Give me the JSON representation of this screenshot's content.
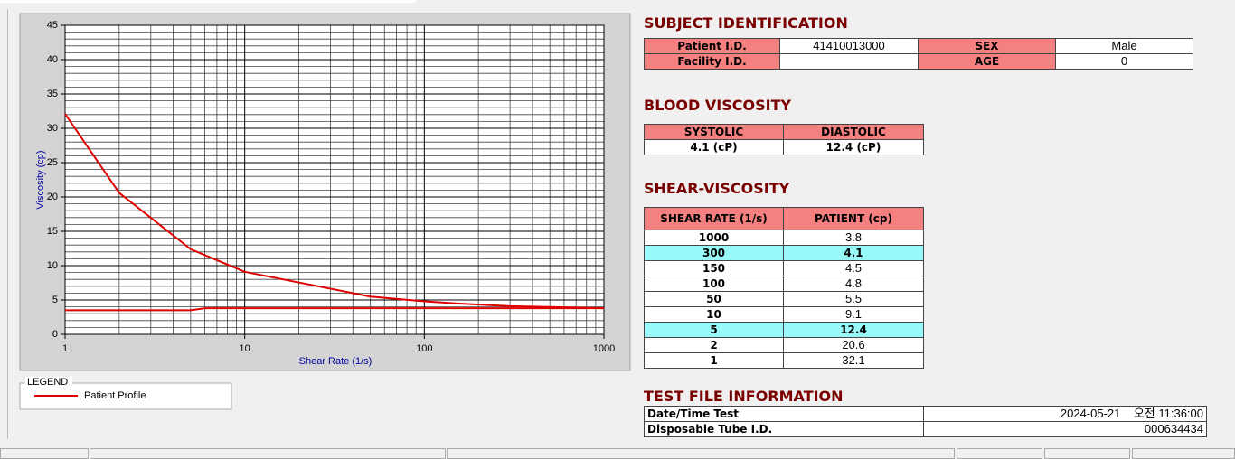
{
  "chart_data": {
    "type": "line",
    "xlabel": "Shear Rate (1/s)",
    "ylabel": "Viscosity (cp)",
    "xscale": "log",
    "xlim": [
      1,
      1000
    ],
    "ylim": [
      0,
      45
    ],
    "xticks": [
      1,
      10,
      100,
      1000
    ],
    "yticks": [
      0,
      5,
      10,
      15,
      20,
      25,
      30,
      35,
      40,
      45
    ],
    "xminorticks": [
      2,
      3,
      4,
      5,
      6,
      7,
      8,
      9,
      20,
      30,
      40,
      50,
      60,
      70,
      80,
      90,
      200,
      300,
      400,
      500,
      600,
      700,
      800,
      900
    ],
    "yminorticks": [
      1,
      2,
      3,
      4,
      6,
      7,
      8,
      9,
      11,
      12,
      13,
      14,
      16,
      17,
      18,
      19,
      21,
      22,
      23,
      24,
      26,
      27,
      28,
      29,
      31,
      32,
      33,
      34,
      36,
      37,
      38,
      39,
      41,
      42,
      43,
      44
    ],
    "grid": true,
    "legend_title": "LEGEND",
    "series": [
      {
        "name": "Patient Profile",
        "color": "#e00000",
        "x": [
          1,
          2,
          5,
          10,
          50,
          100,
          150,
          300,
          1000
        ],
        "values": [
          32.1,
          20.6,
          12.4,
          9.1,
          5.5,
          4.8,
          4.5,
          4.1,
          3.8
        ]
      },
      {
        "color": "#e00000",
        "x": [
          1,
          5,
          6,
          1000
        ],
        "values": [
          3.5,
          3.5,
          3.8,
          3.8
        ]
      }
    ]
  },
  "subject": {
    "title": "SUBJECT IDENTIFICATION",
    "rows": [
      {
        "label": "Patient I.D.",
        "value": "41410013000",
        "label2": "SEX",
        "value2": "Male"
      },
      {
        "label": "Facility I.D.",
        "label2": "AGE",
        "value2": 0
      }
    ]
  },
  "blood": {
    "title": "BLOOD VISCOSITY",
    "headers": [
      "SYSTOLIC",
      "DIASTOLIC"
    ],
    "values": [
      "4.1 (cP)",
      "12.4 (cP)"
    ]
  },
  "shear": {
    "title": "SHEAR-VISCOSITY",
    "headers": [
      "SHEAR RATE (1/s)",
      "PATIENT (cp)"
    ],
    "rows": [
      {
        "rate": 1000,
        "patient": 3.8
      },
      {
        "rate": 300,
        "patient": 4.1,
        "highlight": true
      },
      {
        "rate": 150,
        "patient": 4.5
      },
      {
        "rate": 100,
        "patient": 4.8
      },
      {
        "rate": 50,
        "patient": 5.5
      },
      {
        "rate": 10,
        "patient": 9.1
      },
      {
        "rate": 5,
        "patient": 12.4,
        "highlight": true
      },
      {
        "rate": 2,
        "patient": 20.6
      },
      {
        "rate": 1,
        "patient": 32.1
      }
    ]
  },
  "testfile": {
    "title": "TEST FILE INFORMATION",
    "rows": [
      {
        "label": "Date/Time Test",
        "date": "2024-05-21",
        "time": "오전 11:36:00"
      },
      {
        "label": "Disposable Tube I.D.",
        "value": "000634434"
      }
    ]
  }
}
